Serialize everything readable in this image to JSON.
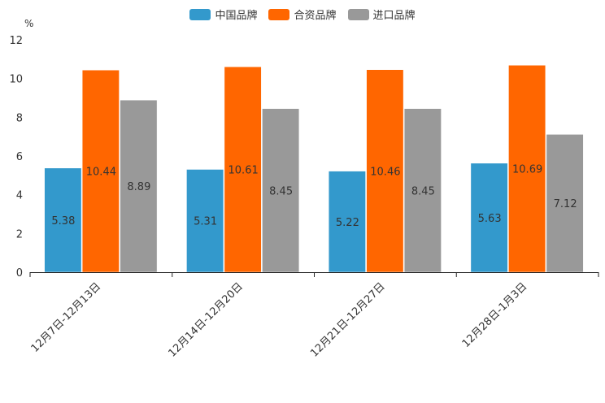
{
  "chart_data": {
    "type": "bar",
    "unit_label": "%",
    "categories": [
      "12月7日-12月13日",
      "12月14日-12月20日",
      "12月21日-12月27日",
      "12月28日-1月3日"
    ],
    "series": [
      {
        "name": "中国品牌",
        "color": "#3399cc",
        "values": [
          5.38,
          5.31,
          5.22,
          5.63
        ],
        "labels": [
          "5.38",
          "5.31",
          "5.22",
          "5.63"
        ]
      },
      {
        "name": "合资品牌",
        "color": "#ff6600",
        "values": [
          10.44,
          10.61,
          10.46,
          10.69
        ],
        "labels": [
          "10.44",
          "10.61",
          "10.46",
          "10.69"
        ]
      },
      {
        "name": "进口品牌",
        "color": "#999999",
        "values": [
          8.89,
          8.45,
          8.45,
          7.12
        ],
        "labels": [
          "8.89",
          "8.45",
          "8.45",
          "7.12"
        ]
      }
    ],
    "y_ticks": [
      "0",
      "2",
      "4",
      "6",
      "8",
      "10",
      "12"
    ],
    "ylim": [
      0,
      12
    ],
    "legend_position": "top-center",
    "grid": false
  }
}
